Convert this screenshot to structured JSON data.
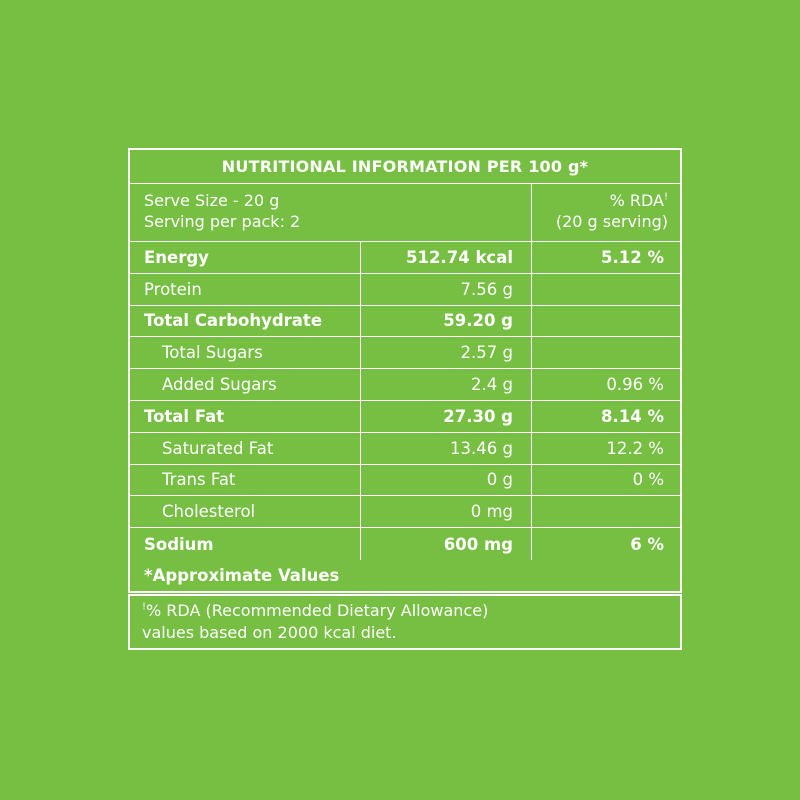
{
  "title": "NUTRITIONAL INFORMATION PER 100 g*",
  "serve_size": "Serve Size - 20 g",
  "serving_per_pack": "Serving per pack: 2",
  "rda_header": "% RDA",
  "rda_header_mark": "!",
  "rda_serving": "(20 g serving)",
  "rows": [
    {
      "name": "Energy",
      "amount": "512.74 kcal",
      "rda": "5.12 %",
      "bold": true,
      "indent": false
    },
    {
      "name": "Protein",
      "amount": "7.56 g",
      "rda": "",
      "bold": false,
      "indent": false
    },
    {
      "name": "Total Carbohydrate",
      "amount": "59.20 g",
      "rda": "",
      "bold": true,
      "indent": false
    },
    {
      "name": "Total Sugars",
      "amount": "2.57 g",
      "rda": "",
      "bold": false,
      "indent": true
    },
    {
      "name": "Added Sugars",
      "amount": "2.4 g",
      "rda": "0.96 %",
      "bold": false,
      "indent": true
    },
    {
      "name": "Total Fat",
      "amount": "27.30 g",
      "rda": "8.14 %",
      "bold": true,
      "indent": false
    },
    {
      "name": "Saturated Fat",
      "amount": "13.46 g",
      "rda": "12.2 %",
      "bold": false,
      "indent": true
    },
    {
      "name": "Trans Fat",
      "amount": "0 g",
      "rda": "0 %",
      "bold": false,
      "indent": true
    },
    {
      "name": "Cholesterol",
      "amount": "0 mg",
      "rda": "",
      "bold": false,
      "indent": true
    },
    {
      "name": "Sodium",
      "amount": "600 mg",
      "rda": "6 %",
      "bold": true,
      "indent": false
    }
  ],
  "approximate_note": "*Approximate Values",
  "footnote_mark": "!",
  "footnote_line1": "% RDA (Recommended Dietary Allowance)",
  "footnote_line2": "values based on 2000 kcal diet.",
  "colors": {
    "background": "#76bf43",
    "foreground": "#ffffff"
  }
}
